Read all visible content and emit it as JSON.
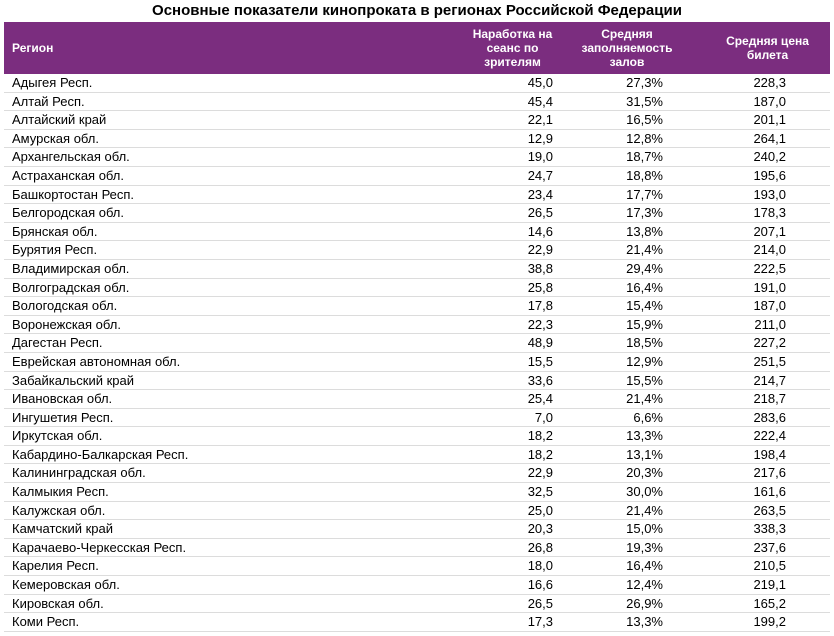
{
  "title": "Основные показатели кинопроката в регионах Российской Федерации",
  "table": {
    "header": [
      "Регион",
      "Наработка на сеанс по зрителям",
      "Средняя заполняемость залов",
      "Средняя цена билета"
    ],
    "rows": [
      [
        "Адыгея Респ.",
        "45,0",
        "27,3%",
        "228,3"
      ],
      [
        "Алтай Респ.",
        "45,4",
        "31,5%",
        "187,0"
      ],
      [
        "Алтайский край",
        "22,1",
        "16,5%",
        "201,1"
      ],
      [
        "Амурская обл.",
        "12,9",
        "12,8%",
        "264,1"
      ],
      [
        "Архангельская обл.",
        "19,0",
        "18,7%",
        "240,2"
      ],
      [
        "Астраханская обл.",
        "24,7",
        "18,8%",
        "195,6"
      ],
      [
        "Башкортостан Респ.",
        "23,4",
        "17,7%",
        "193,0"
      ],
      [
        "Белгородская обл.",
        "26,5",
        "17,3%",
        "178,3"
      ],
      [
        "Брянская обл.",
        "14,6",
        "13,8%",
        "207,1"
      ],
      [
        "Бурятия Респ.",
        "22,9",
        "21,4%",
        "214,0"
      ],
      [
        "Владимирская обл.",
        "38,8",
        "29,4%",
        "222,5"
      ],
      [
        "Волгоградская обл.",
        "25,8",
        "16,4%",
        "191,0"
      ],
      [
        "Вологодская обл.",
        "17,8",
        "15,4%",
        "187,0"
      ],
      [
        "Воронежская обл.",
        "22,3",
        "15,9%",
        "211,0"
      ],
      [
        "Дагестан Респ.",
        "48,9",
        "18,5%",
        "227,2"
      ],
      [
        "Еврейская автономная обл.",
        "15,5",
        "12,9%",
        "251,5"
      ],
      [
        "Забайкальский край",
        "33,6",
        "15,5%",
        "214,7"
      ],
      [
        "Ивановская обл.",
        "25,4",
        "21,4%",
        "218,7"
      ],
      [
        "Ингушетия Респ.",
        "7,0",
        "6,6%",
        "283,6"
      ],
      [
        "Иркутская обл.",
        "18,2",
        "13,3%",
        "222,4"
      ],
      [
        "Кабардино-Балкарская Респ.",
        "18,2",
        "13,1%",
        "198,4"
      ],
      [
        "Калининградская обл.",
        "22,9",
        "20,3%",
        "217,6"
      ],
      [
        "Калмыкия Респ.",
        "32,5",
        "30,0%",
        "161,6"
      ],
      [
        "Калужская обл.",
        "25,0",
        "21,4%",
        "263,5"
      ],
      [
        "Камчатский край",
        "20,3",
        "15,0%",
        "338,3"
      ],
      [
        "Карачаево-Черкесская Респ.",
        "26,8",
        "19,3%",
        "237,6"
      ],
      [
        "Карелия Респ.",
        "18,0",
        "16,4%",
        "210,5"
      ],
      [
        "Кемеровская обл.",
        "16,6",
        "12,4%",
        "219,1"
      ],
      [
        "Кировская обл.",
        "26,5",
        "26,9%",
        "165,2"
      ],
      [
        "Коми Респ.",
        "17,3",
        "13,3%",
        "199,2"
      ]
    ]
  }
}
